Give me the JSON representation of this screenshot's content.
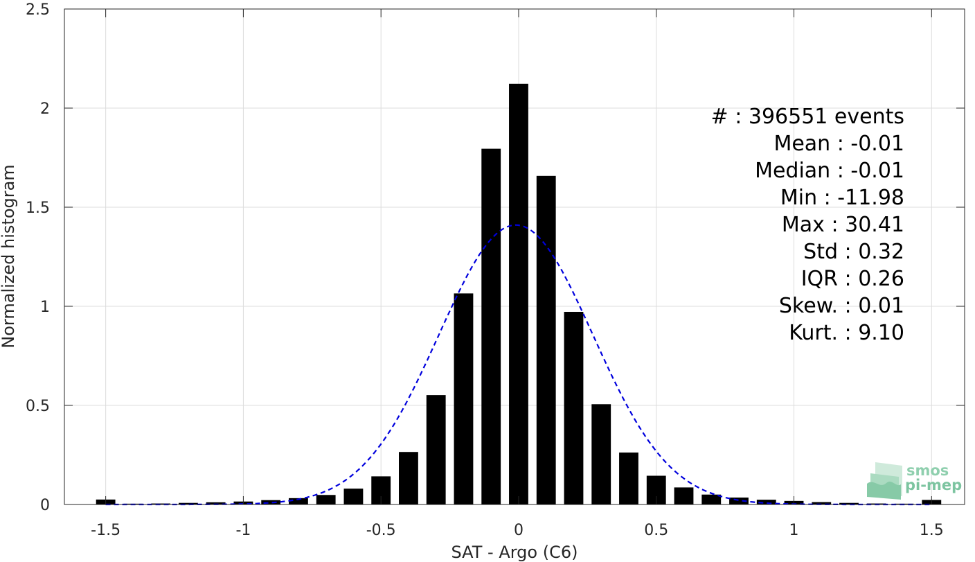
{
  "chart_data": {
    "type": "bar",
    "xlabel": "SAT - Argo (C6)",
    "ylabel": "Normalized histogram",
    "xlim": [
      -1.65,
      1.62
    ],
    "ylim": [
      0,
      2.5
    ],
    "grid": true,
    "x_ticks": [
      -1.5,
      -1,
      -0.5,
      0,
      0.5,
      1,
      1.5
    ],
    "x_tick_labels": [
      "-1.5",
      "-1",
      "-0.5",
      "0",
      "0.5",
      "1",
      "1.5"
    ],
    "y_ticks": [
      0,
      0.5,
      1,
      1.5,
      2,
      2.5
    ],
    "y_tick_labels": [
      "0",
      "0.5",
      "1",
      "1.5",
      "2",
      "2.5"
    ],
    "bin_width": 0.1,
    "bar_width": 0.07,
    "bar_color": "#000000",
    "bars": {
      "x": [
        -1.5,
        -1.4,
        -1.3,
        -1.2,
        -1.1,
        -1.0,
        -0.9,
        -0.8,
        -0.7,
        -0.6,
        -0.5,
        -0.4,
        -0.3,
        -0.2,
        -0.1,
        0.0,
        0.1,
        0.2,
        0.3,
        0.4,
        0.5,
        0.6,
        0.7,
        0.8,
        0.9,
        1.0,
        1.1,
        1.2,
        1.3,
        1.4,
        1.5
      ],
      "values": [
        0.025,
        0.004,
        0.005,
        0.008,
        0.011,
        0.015,
        0.022,
        0.032,
        0.048,
        0.08,
        0.142,
        0.265,
        0.552,
        1.065,
        1.795,
        2.123,
        1.658,
        0.972,
        0.506,
        0.262,
        0.145,
        0.086,
        0.05,
        0.035,
        0.024,
        0.018,
        0.012,
        0.008,
        0.005,
        0.004,
        0.023
      ]
    },
    "fit_curve": {
      "kind": "normal",
      "mean": -0.01,
      "std": 0.28,
      "peak": 1.41,
      "color": "#0000dd",
      "style": "dashed"
    },
    "stats_lines": [
      "#  : 396551 events",
      "Mean : -0.01",
      "Median : -0.01",
      "Min : -11.98",
      "Max : 30.41",
      "Std : 0.32",
      "IQR : 0.26",
      "Skew. : 0.01",
      "Kurt. : 9.10"
    ]
  },
  "logo": {
    "line1": "smos",
    "line2": "pi-mep",
    "color": "#6dbf95"
  }
}
